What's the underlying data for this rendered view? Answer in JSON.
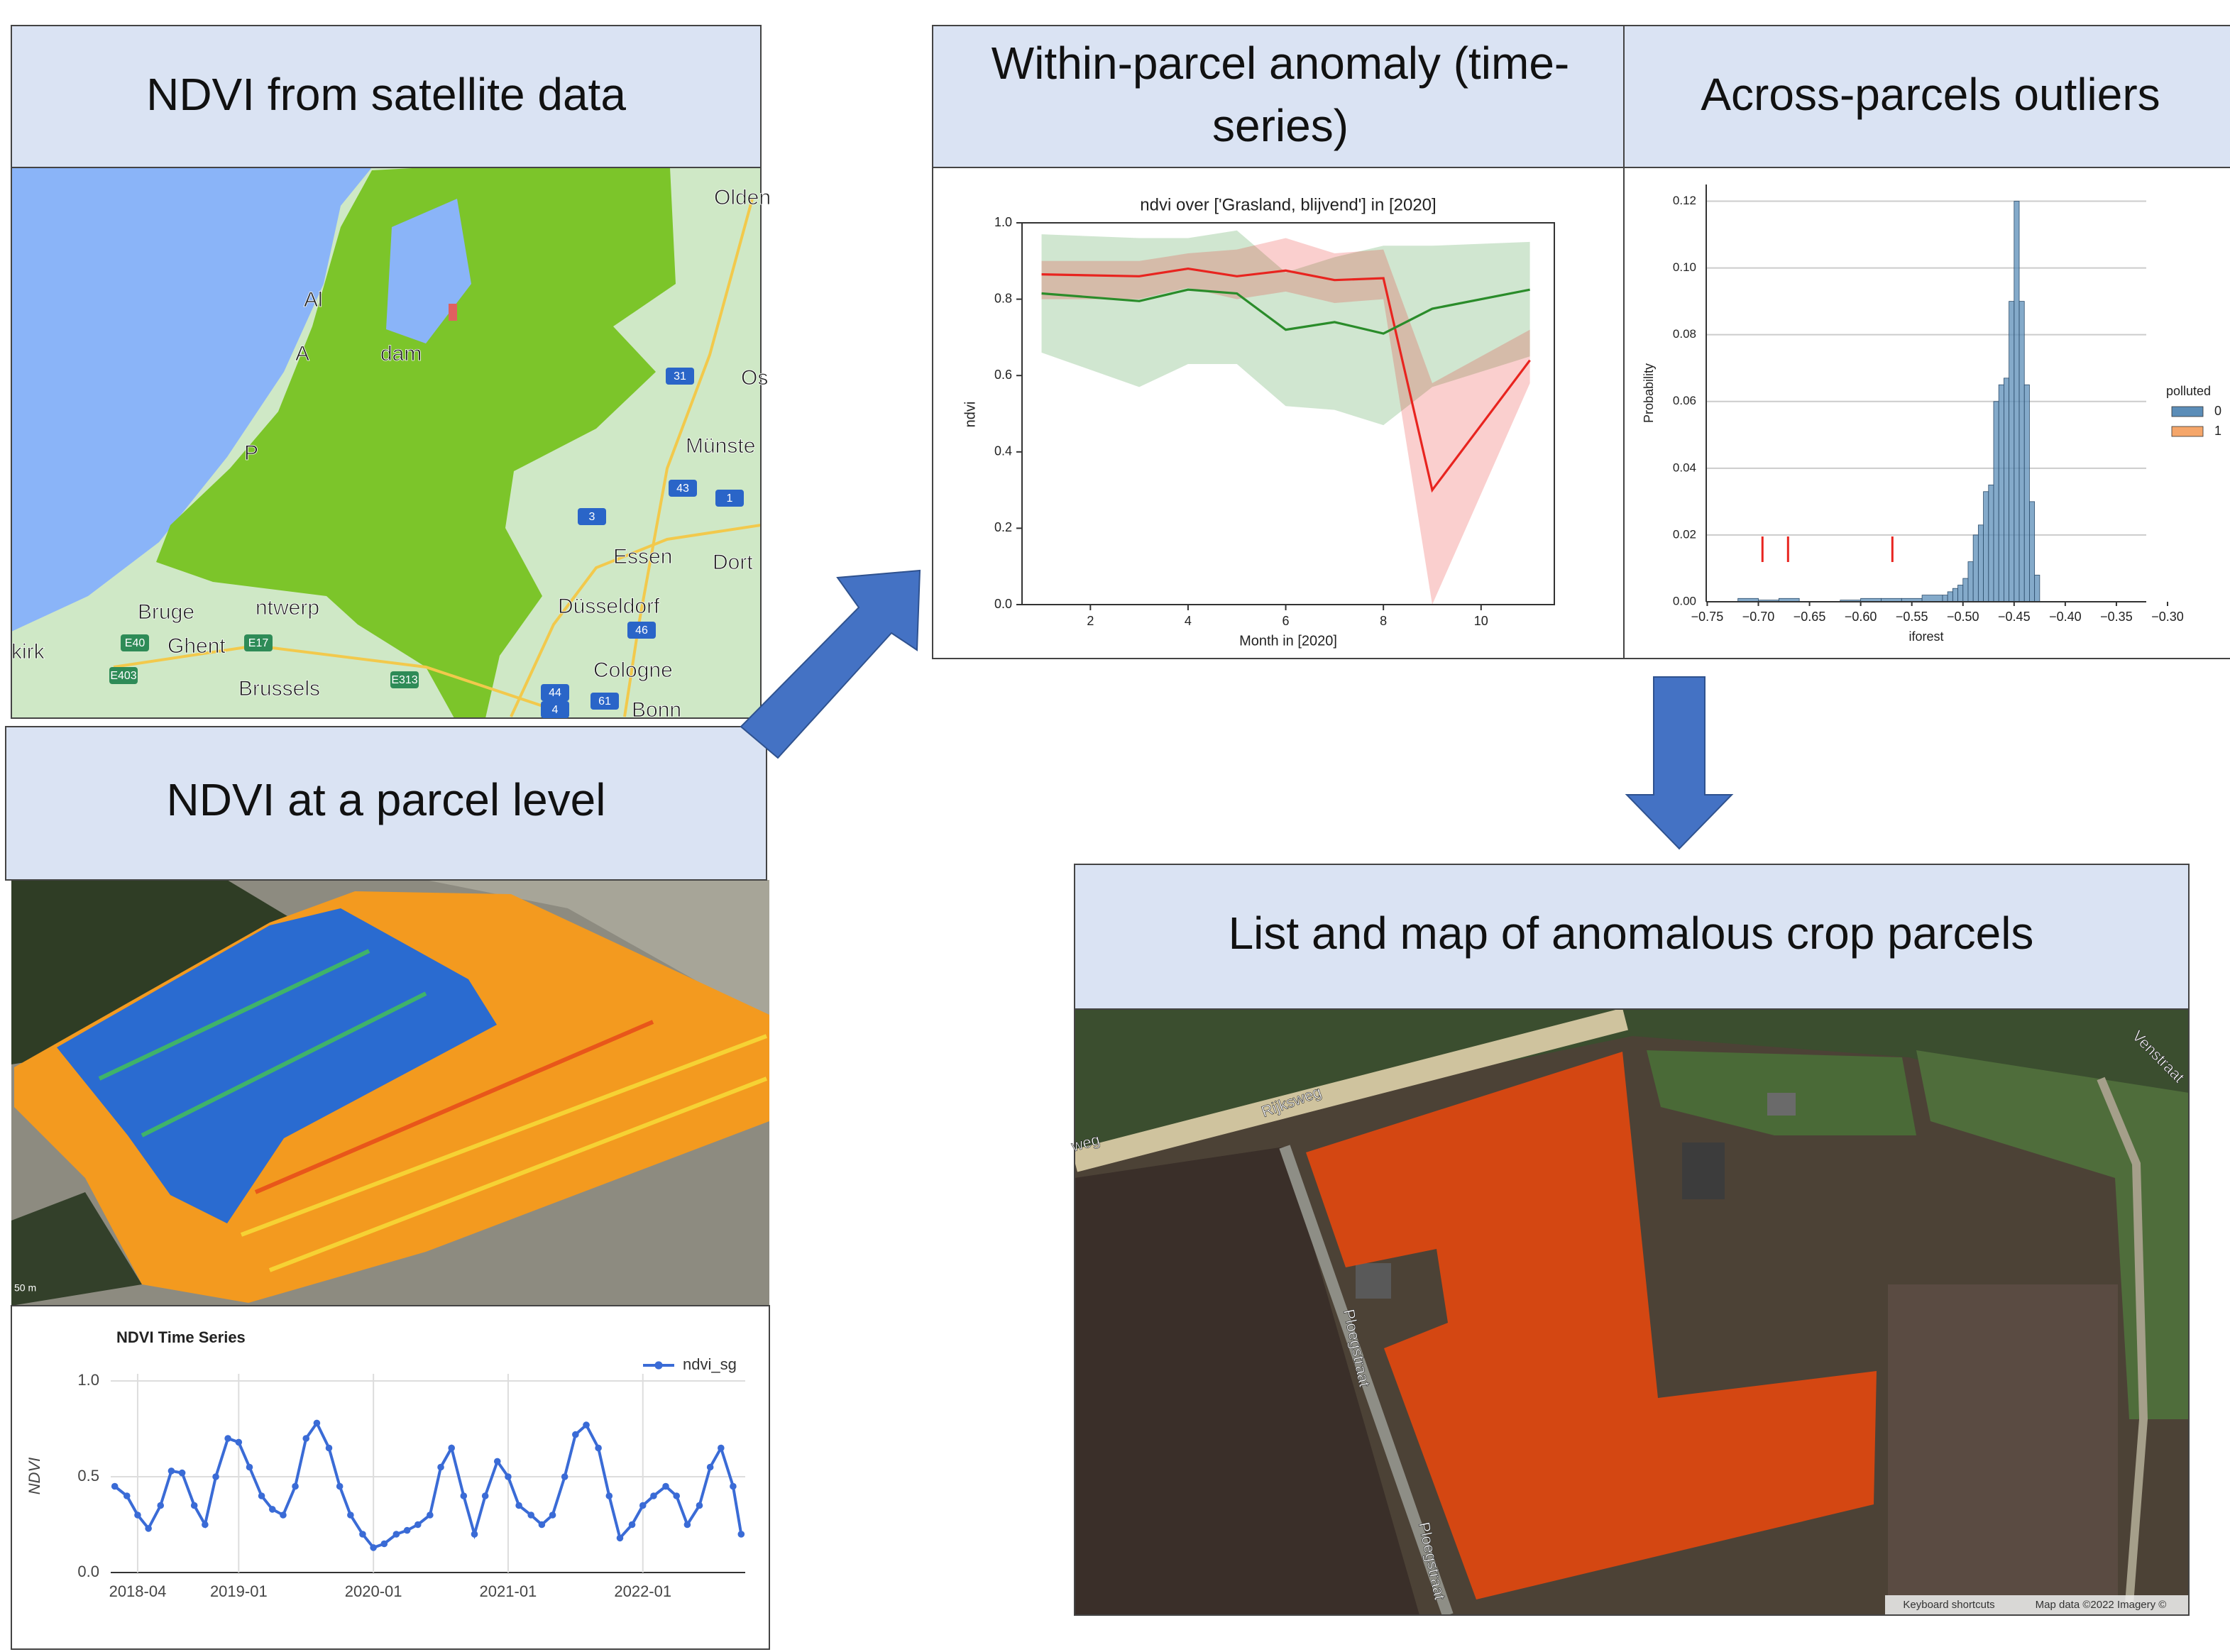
{
  "panels": {
    "satellite": {
      "title": "NDVI from satellite data",
      "map_labels": [
        "Olden",
        "Os",
        "Münste",
        "Essen",
        "Dort",
        "Düsseldorf",
        "Cologne",
        "Bonn",
        "Bruge",
        "ntwerp",
        "Ghent",
        "Brussels",
        "kirk",
        "Al",
        "A",
        "dam",
        "P"
      ],
      "road_badges": [
        "31",
        "43",
        "3",
        "1",
        "46",
        "44",
        "61",
        "4",
        "E40",
        "E17",
        "E403",
        "E313"
      ]
    },
    "parcel": {
      "title": "NDVI at a parcel level",
      "scale_label": "50 m"
    },
    "within": {
      "title_lines": [
        "Within-parcel anomaly (time-",
        "series)"
      ]
    },
    "across": {
      "title": "Across-parcels outliers"
    },
    "result": {
      "title": "List and map of anomalous crop parcels",
      "map_labels": [
        "Rijksweg",
        "weg",
        "Venstraat",
        "Ploegstraat",
        "Ploegstraat"
      ],
      "attribution": [
        "Keyboard shortcuts",
        "Map data ©2022 Imagery ©"
      ]
    }
  },
  "chart_data": [
    {
      "type": "line",
      "title": "NDVI Time Series",
      "y_label": "NDVI",
      "legend": "upper right",
      "grid": true,
      "series": [
        {
          "name": "ndvi_sg",
          "color": "#3a6bd6",
          "x": [
            2018.08,
            2018.17,
            2018.25,
            2018.33,
            2018.42,
            2018.5,
            2018.58,
            2018.67,
            2018.75,
            2018.83,
            2018.92,
            2019.0,
            2019.08,
            2019.17,
            2019.25,
            2019.33,
            2019.42,
            2019.5,
            2019.58,
            2019.67,
            2019.75,
            2019.83,
            2019.92,
            2020.0,
            2020.08,
            2020.17,
            2020.25,
            2020.33,
            2020.42,
            2020.5,
            2020.58,
            2020.67,
            2020.75,
            2020.83,
            2020.92,
            2021.0,
            2021.08,
            2021.17,
            2021.25,
            2021.33,
            2021.42,
            2021.5,
            2021.58,
            2021.67,
            2021.75,
            2021.83,
            2021.92,
            2022.0,
            2022.08,
            2022.17,
            2022.25,
            2022.33,
            2022.42,
            2022.5,
            2022.58,
            2022.67,
            2022.73
          ],
          "values": [
            0.45,
            0.4,
            0.3,
            0.23,
            0.35,
            0.53,
            0.52,
            0.35,
            0.25,
            0.5,
            0.7,
            0.68,
            0.55,
            0.4,
            0.33,
            0.3,
            0.45,
            0.7,
            0.78,
            0.65,
            0.45,
            0.3,
            0.2,
            0.13,
            0.15,
            0.2,
            0.22,
            0.25,
            0.3,
            0.55,
            0.65,
            0.4,
            0.2,
            0.4,
            0.58,
            0.5,
            0.35,
            0.3,
            0.25,
            0.3,
            0.5,
            0.72,
            0.77,
            0.65,
            0.4,
            0.18,
            0.25,
            0.35,
            0.4,
            0.45,
            0.4,
            0.25,
            0.35,
            0.55,
            0.65,
            0.45,
            0.2
          ]
        }
      ],
      "xlim": [
        2018.05,
        2022.76
      ],
      "xticks": [
        {
          "value": 2018.25,
          "label": "2018-04"
        },
        {
          "value": 2019.0,
          "label": "2019-01"
        },
        {
          "value": 2020.0,
          "label": "2020-01"
        },
        {
          "value": 2021.0,
          "label": "2021-01"
        },
        {
          "value": 2022.0,
          "label": "2022-01"
        }
      ],
      "ylim": [
        0,
        1
      ],
      "yticks": [
        {
          "value": 0,
          "label": "0.0"
        },
        0.5,
        {
          "value": 1,
          "label": "1.0"
        }
      ]
    },
    {
      "type": "band-line",
      "title": "ndvi over ['Grasland, blijvend'] in [2020]",
      "x_label": "Month in [2020]",
      "y_label": "ndvi",
      "series": [
        {
          "color": "#e8241f",
          "x": [
            1,
            3,
            4,
            5,
            6,
            7,
            8,
            9,
            11
          ],
          "values": [
            0.865,
            0.86,
            0.88,
            0.86,
            0.875,
            0.85,
            0.855,
            0.3,
            0.64
          ],
          "lower": [
            0.8,
            0.8,
            0.83,
            0.8,
            0.82,
            0.79,
            0.8,
            0.0,
            0.58
          ],
          "upper": [
            0.9,
            0.9,
            0.92,
            0.93,
            0.96,
            0.92,
            0.93,
            0.58,
            0.72
          ]
        },
        {
          "color": "#2a8c2a",
          "x": [
            1,
            3,
            4,
            5,
            6,
            7,
            8,
            9,
            11
          ],
          "values": [
            0.815,
            0.795,
            0.825,
            0.815,
            0.72,
            0.74,
            0.71,
            0.775,
            0.825
          ],
          "lower": [
            0.66,
            0.57,
            0.63,
            0.63,
            0.52,
            0.51,
            0.47,
            0.57,
            0.65
          ],
          "upper": [
            0.97,
            0.96,
            0.96,
            0.98,
            0.87,
            0.91,
            0.94,
            0.94,
            0.95
          ]
        }
      ],
      "xlim": [
        0.6,
        11.5
      ],
      "xticks": [
        2,
        4,
        6,
        8,
        10
      ],
      "ylim": [
        0,
        1
      ],
      "yticks": [
        {
          "value": 0,
          "label": "0.0"
        },
        0.2,
        0.4,
        0.6,
        0.8,
        {
          "value": 1,
          "label": "1.0"
        }
      ]
    },
    {
      "type": "histogram",
      "x_label": "iforest",
      "y_label": "Probability",
      "legend_title": "polluted",
      "legend": "center right",
      "grid": true,
      "bins": [
        -0.72,
        -0.7,
        -0.68,
        -0.66,
        -0.64,
        -0.62,
        -0.6,
        -0.58,
        -0.56,
        -0.54,
        -0.52,
        -0.515,
        -0.51,
        -0.505,
        -0.5,
        -0.495,
        -0.49,
        -0.485,
        -0.48,
        -0.475,
        -0.47,
        -0.465,
        -0.46,
        -0.455,
        -0.45,
        -0.445,
        -0.44,
        -0.435,
        -0.43,
        -0.425
      ],
      "series": [
        {
          "name": "0",
          "color": "#5b8db8",
          "values": [
            0.001,
            0.0005,
            0.001,
            0,
            0,
            0.0005,
            0.001,
            0.001,
            0.001,
            0.002,
            0.002,
            0.003,
            0.004,
            0.005,
            0.007,
            0.012,
            0.02,
            0.023,
            0.033,
            0.035,
            0.06,
            0.065,
            0.067,
            0.09,
            0.12,
            0.09,
            0.065,
            0.03,
            0.008
          ]
        },
        {
          "name": "1",
          "color": "#f5a66a",
          "rug_color": "#e8241f",
          "x": [
            -0.696,
            -0.671,
            -0.569
          ]
        }
      ],
      "xlim": [
        -0.751,
        -0.3
      ],
      "xticks": [
        {
          "value": -0.75,
          "label": "−0.75"
        },
        {
          "value": -0.7,
          "label": "−0.70"
        },
        {
          "value": -0.65,
          "label": "−0.65"
        },
        {
          "value": -0.6,
          "label": "−0.60"
        },
        {
          "value": -0.55,
          "label": "−0.55"
        },
        {
          "value": -0.5,
          "label": "−0.50"
        },
        {
          "value": -0.45,
          "label": "−0.45"
        },
        {
          "value": -0.4,
          "label": "−0.40"
        },
        {
          "value": -0.35,
          "label": "−0.35"
        },
        {
          "value": -0.3,
          "label": "−0.30"
        }
      ],
      "ylim": [
        0,
        0.125
      ],
      "yticks": [
        {
          "value": 0,
          "label": "0.00"
        },
        0.02,
        0.04,
        0.06,
        0.08,
        {
          "value": 0.1,
          "label": "0.10"
        },
        0.12
      ]
    }
  ]
}
